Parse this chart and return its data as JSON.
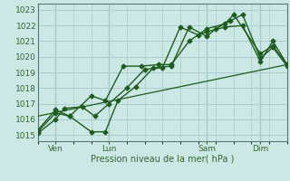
{
  "bg_color": "#cce8e4",
  "grid_color": "#aacccc",
  "line_color": "#1e5c1e",
  "title": "Pression niveau de la mer( hPa )",
  "yticks": [
    1015,
    1016,
    1017,
    1018,
    1019,
    1020,
    1021,
    1022,
    1023
  ],
  "ylim": [
    1014.6,
    1023.4
  ],
  "xlim": [
    0,
    14
  ],
  "xtick_positions": [
    1.0,
    4.0,
    9.5,
    12.5
  ],
  "xtick_labels": [
    "Ven",
    "Lun",
    "Sam",
    "Dim"
  ],
  "vlines": [
    1.0,
    4.0,
    9.5,
    12.5
  ],
  "line1_x": [
    0,
    1.0,
    1.8,
    3.0,
    3.8,
    4.5,
    5.5,
    6.5,
    7.5,
    8.5,
    9.5,
    10.0,
    10.8,
    11.5,
    12.5,
    13.2,
    14.0
  ],
  "line1_y": [
    1015.2,
    1016.4,
    1016.2,
    1015.2,
    1015.2,
    1017.2,
    1018.1,
    1019.3,
    1019.4,
    1021.9,
    1021.3,
    1021.8,
    1022.3,
    1022.7,
    1019.9,
    1020.6,
    1019.4
  ],
  "line2_x": [
    0,
    1.0,
    1.8,
    3.0,
    3.8,
    4.8,
    5.8,
    6.8,
    7.5,
    8.5,
    9.5,
    10.5,
    11.0,
    12.5,
    13.2,
    14.0
  ],
  "line2_y": [
    1015.3,
    1016.6,
    1016.2,
    1017.5,
    1017.2,
    1019.4,
    1019.4,
    1019.5,
    1019.5,
    1021.0,
    1021.8,
    1022.1,
    1022.7,
    1020.2,
    1020.7,
    1019.5
  ],
  "line3_x": [
    0,
    1.0,
    1.5,
    2.5,
    3.2,
    4.0,
    5.0,
    6.0,
    7.0,
    8.0,
    9.0,
    9.5,
    10.5,
    11.5,
    12.5,
    13.2,
    14.0
  ],
  "line3_y": [
    1015.1,
    1016.0,
    1016.7,
    1016.8,
    1016.2,
    1017.0,
    1018.0,
    1019.2,
    1019.3,
    1021.9,
    1021.4,
    1021.6,
    1021.9,
    1022.0,
    1019.7,
    1021.0,
    1019.5
  ],
  "line4_x": [
    0,
    14.0
  ],
  "line4_y": [
    1016.2,
    1019.5
  ]
}
